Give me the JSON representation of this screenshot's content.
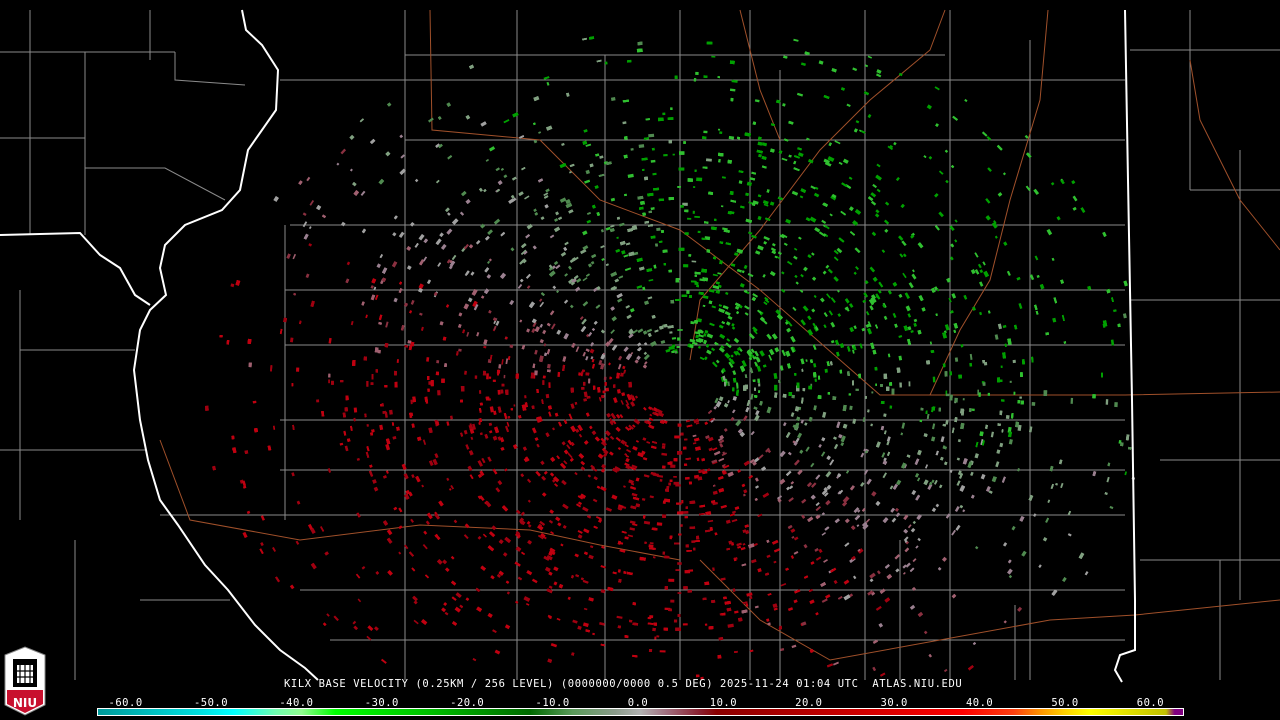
{
  "caption": {
    "station": "KILX",
    "text": "KILX BASE VELOCITY (0.25KM / 256 LEVEL) (0000000/0000 0.5 DEG) 2025-11-24 01:04 UTC  ATLAS.NIU.EDU"
  },
  "product": "BASE VELOCITY",
  "elevation": "0.5 DEG",
  "timestamp": "2025-11-24 01:04 UTC",
  "source": "ATLAS.NIU.EDU",
  "logo": {
    "text": "NIU",
    "colors": {
      "shield": "#ffffff",
      "band": "#c8102e"
    }
  },
  "colorbar": {
    "unit_range": [
      -64,
      64
    ],
    "labels": [
      "-60.0",
      "-50.0",
      "-40.0",
      "-30.0",
      "-20.0",
      "-10.0",
      "0.0",
      "10.0",
      "20.0",
      "30.0",
      "40.0",
      "50.0",
      "60.0"
    ],
    "values": [
      -60,
      -50,
      -40,
      -30,
      -20,
      -10,
      0,
      10,
      20,
      30,
      40,
      50,
      60
    ]
  },
  "colors": {
    "inbound": "#00c000",
    "outbound": "#b00010",
    "near_zero": "#9a8a90",
    "state_border": "#ffffff",
    "county_border": "#8a8a8a",
    "roads": "#a0502a"
  }
}
